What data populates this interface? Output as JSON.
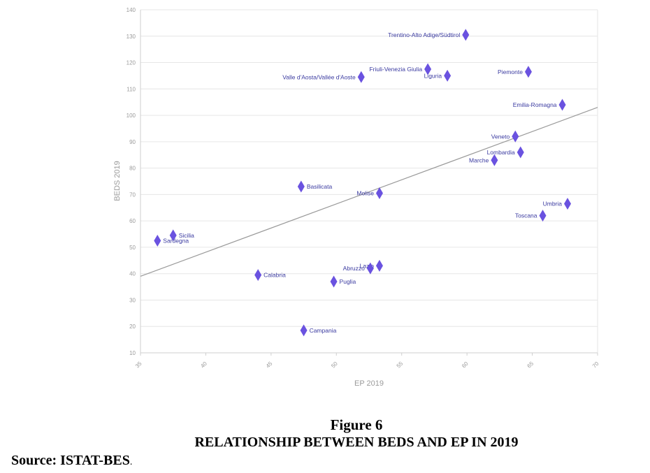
{
  "figure": {
    "number": "Figure 6",
    "title": "RELATIONSHIP BETWEEN BEDS AND EP IN 2019",
    "source": "Source: ISTAT-BES",
    "source_suffix": "."
  },
  "chart_data": {
    "type": "scatter",
    "xlabel": "EP 2019",
    "ylabel": "BEDS 2019",
    "xlim": [
      35,
      70
    ],
    "ylim": [
      10,
      140
    ],
    "xticks": [
      35,
      40,
      45,
      50,
      55,
      60,
      65,
      70
    ],
    "yticks": [
      10,
      20,
      30,
      40,
      50,
      60,
      70,
      80,
      90,
      100,
      110,
      120,
      130,
      140
    ],
    "grid": "horizontal",
    "marker": "diamond",
    "marker_color": "#6a52e0",
    "trendline": {
      "x": [
        35,
        70
      ],
      "y": [
        39,
        103
      ],
      "color": "#9a9a9a"
    },
    "points": [
      {
        "label": "Trentino-Alto Adige/Südtirol",
        "x": 59.9,
        "y": 130.5,
        "label_side": "left"
      },
      {
        "label": "Friuli-Venezia Giulia",
        "x": 57.0,
        "y": 117.5,
        "label_side": "left"
      },
      {
        "label": "Liguria",
        "x": 58.5,
        "y": 115,
        "label_side": "left"
      },
      {
        "label": "Piemonte",
        "x": 64.7,
        "y": 116.5,
        "label_side": "left"
      },
      {
        "label": "Valle d'Aosta/Vallée d'Aoste",
        "x": 51.9,
        "y": 114.5,
        "label_side": "left"
      },
      {
        "label": "Emilia-Romagna",
        "x": 67.3,
        "y": 104,
        "label_side": "left"
      },
      {
        "label": "Veneto",
        "x": 63.7,
        "y": 92,
        "label_side": "left"
      },
      {
        "label": "Lombardia",
        "x": 64.1,
        "y": 86,
        "label_side": "left"
      },
      {
        "label": "Marche",
        "x": 62.1,
        "y": 83,
        "label_side": "left"
      },
      {
        "label": "Basilicata",
        "x": 47.3,
        "y": 73,
        "label_side": "right"
      },
      {
        "label": "Molise",
        "x": 53.3,
        "y": 70.5,
        "label_side": "left"
      },
      {
        "label": "Umbria",
        "x": 67.7,
        "y": 66.5,
        "label_side": "left"
      },
      {
        "label": "Toscana",
        "x": 65.8,
        "y": 62,
        "label_side": "left"
      },
      {
        "label": "Sicilia",
        "x": 37.5,
        "y": 54.5,
        "label_side": "right"
      },
      {
        "label": "Sardegna",
        "x": 36.3,
        "y": 52.5,
        "label_side": "right"
      },
      {
        "label": "Lazio",
        "x": 53.3,
        "y": 43,
        "label_side": "left"
      },
      {
        "label": "Abruzzo",
        "x": 52.6,
        "y": 42,
        "label_side": "left"
      },
      {
        "label": "Calabria",
        "x": 44.0,
        "y": 39.5,
        "label_side": "right"
      },
      {
        "label": "Puglia",
        "x": 49.8,
        "y": 37,
        "label_side": "right"
      },
      {
        "label": "Campania",
        "x": 47.5,
        "y": 18.5,
        "label_side": "right"
      }
    ]
  }
}
